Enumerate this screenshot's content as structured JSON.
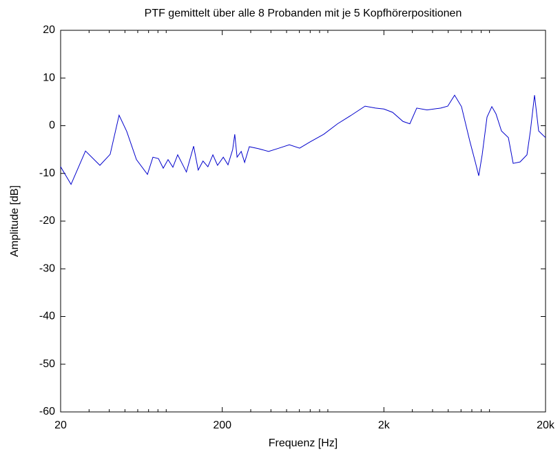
{
  "chart_data": {
    "type": "line",
    "title": "PTF gemittelt über alle 8 Probanden mit je 5 Kopfhörerpositionen",
    "xlabel": "Frequenz [Hz]",
    "ylabel": "Amplitude [dB]",
    "xscale": "log",
    "x": [
      20,
      23.2,
      28.5,
      35,
      40.5,
      46,
      51.3,
      58.9,
      68.9,
      74.5,
      80.6,
      86.3,
      92.4,
      99,
      106,
      112,
      120,
      133,
      142,
      152,
      163,
      175,
      187,
      203,
      217,
      232,
      239,
      247,
      262,
      275,
      294,
      334,
      387,
      449,
      520,
      602,
      698,
      849,
      1033,
      1257,
      1529,
      1772,
      2000,
      2265,
      2624,
      2894,
      3193,
      3698,
      4500,
      4966,
      5477,
      6040,
      6796,
      7352,
      7723,
      8110,
      8689,
      9307,
      9870,
      10676,
      11778,
      12613,
      13913,
      15349,
      16119,
      17098,
      18133,
      19043,
      20000
    ],
    "series": [
      {
        "name": "PTF",
        "color": "#0000cc",
        "values": [
          -8.6,
          -12.3,
          -5.3,
          -8.3,
          -6,
          2.2,
          -1.2,
          -7.1,
          -10.2,
          -6.6,
          -6.9,
          -8.9,
          -7.1,
          -8.7,
          -6.1,
          -7.7,
          -9.7,
          -4.3,
          -9.3,
          -7.4,
          -8.6,
          -6.1,
          -8.3,
          -6.6,
          -8.2,
          -5,
          -1.8,
          -6.6,
          -5.4,
          -7.7,
          -4.4,
          -4.8,
          -5.4,
          -4.7,
          -4,
          -4.7,
          -3.4,
          -1.8,
          0.4,
          2.2,
          4.1,
          3.7,
          3.5,
          2.8,
          0.9,
          0.4,
          3.7,
          3.3,
          3.7,
          4.1,
          6.4,
          4,
          -3.2,
          -7.6,
          -10.5,
          -6.1,
          1.8,
          4,
          2.5,
          -1.1,
          -2.5,
          -7.9,
          -7.6,
          -6.1,
          -1.1,
          6.4,
          -1.1,
          -1.8,
          -2.5
        ]
      }
    ],
    "xlim": [
      20,
      20000
    ],
    "xticks": [
      20,
      200,
      {
        "value": 2000,
        "label": "2k"
      },
      {
        "value": 20000,
        "label": "20k"
      }
    ],
    "xminorticks": [
      30,
      40,
      50,
      60,
      70,
      80,
      90,
      300,
      400,
      500,
      600,
      700,
      800,
      900,
      3000,
      4000,
      5000,
      6000,
      7000,
      8000,
      9000
    ],
    "ylim": [
      -60,
      20
    ],
    "yticks": [
      -60,
      -50,
      -40,
      -30,
      -20,
      -10,
      0,
      10,
      20
    ],
    "grid": false
  }
}
